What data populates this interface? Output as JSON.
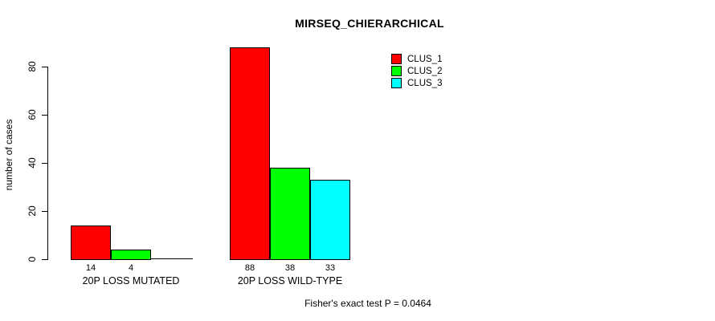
{
  "chart_data": {
    "type": "bar",
    "title": "MIRSEQ_CHIERARCHICAL",
    "xlabel": "",
    "ylabel": "number of cases",
    "categories": [
      "20P LOSS MUTATED",
      "20P LOSS WILD-TYPE"
    ],
    "series": [
      {
        "name": "CLUS_1",
        "color": "#ff0000",
        "values": [
          14,
          88
        ]
      },
      {
        "name": "CLUS_2",
        "color": "#00ff00",
        "values": [
          4,
          38
        ]
      },
      {
        "name": "CLUS_3",
        "color": "#00ffff",
        "values": [
          0,
          33
        ]
      }
    ],
    "bar_value_labels": [
      [
        "14",
        "4",
        ""
      ],
      [
        "88",
        "38",
        "33"
      ]
    ],
    "yticks": [
      0,
      20,
      40,
      60,
      80
    ],
    "ylim": [
      0,
      88
    ],
    "grid": false,
    "legend_position": "top-right",
    "annotation": "Fisher's exact test P = 0.0464"
  },
  "legend": {
    "items": [
      {
        "label": "CLUS_1",
        "color": "#ff0000"
      },
      {
        "label": "CLUS_2",
        "color": "#00ff00"
      },
      {
        "label": "CLUS_3",
        "color": "#00ffff"
      }
    ]
  },
  "colors": {
    "background": "#ffffff",
    "axis": "#000000",
    "bar_border": "#000000",
    "clus_1": "#ff0000",
    "clus_2": "#00ff00",
    "clus_3": "#00ffff"
  }
}
